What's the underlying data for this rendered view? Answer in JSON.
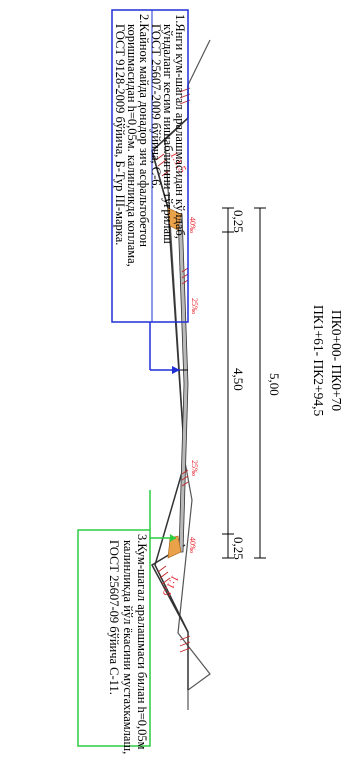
{
  "title": {
    "line1": "ПК0+00- ПК0+70",
    "line2": "ПК1+61- ПК2+94,5"
  },
  "dimensions": {
    "total": "5,00",
    "left_shoulder": "0,25",
    "carriageway": "4,50",
    "right_shoulder": "0,25"
  },
  "slopes": {
    "left": "1:1,5",
    "right": "1:1,5"
  },
  "crossfall": {
    "left_shoulder": "40‰",
    "left_lane": "25‰",
    "right_lane": "25‰",
    "right_shoulder": "40‰"
  },
  "notes": {
    "blue": [
      "1.Янги кум-шагал аралашмасидан кўлдаб,",
      "кўндаланг кесим нишаблигини тўғрилаш",
      "ГОСТ 25607-2009 бўйича, С-6.",
      "2.Кайнок майда донадор зич асфальтобетон",
      "коришмасидан h=0,05м. калинликда коплама,",
      "ГОСТ 9128-2009 бўйича, Б-Тур III-марка."
    ],
    "green": [
      "3.Кум-шагал аралашмаси билан h=0,05м",
      "калинликда йўл ёкасини мустахкамлаш,",
      "ГОСТ 25607-09 бўйича С-11."
    ]
  },
  "colors": {
    "blue_leader": "#1f2fd6",
    "green_leader": "#2ecc40",
    "slope_text": "#e8202a",
    "shoulder_fill": "#e9a14a"
  }
}
